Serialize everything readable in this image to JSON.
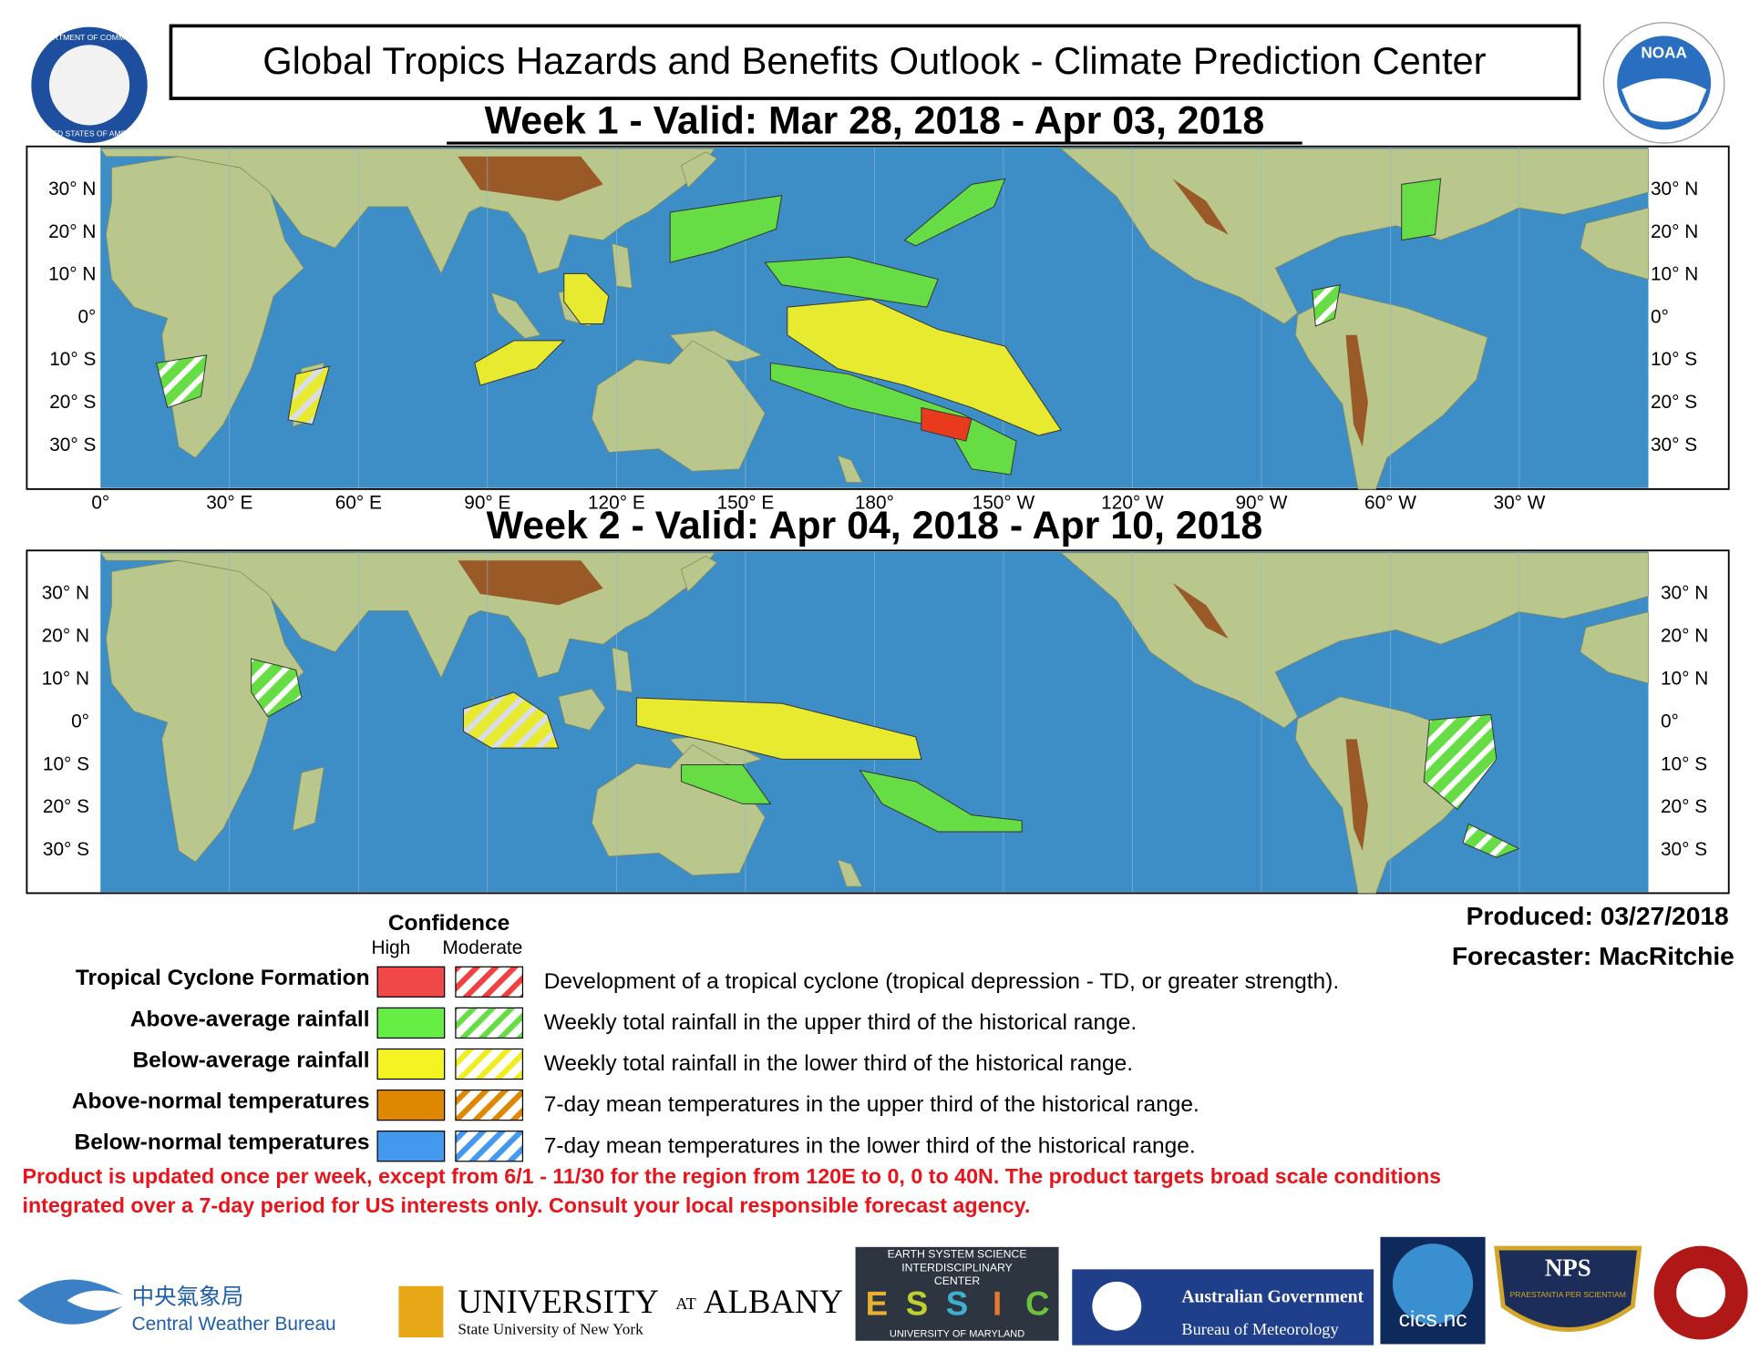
{
  "header": {
    "title": "Global Tropics Hazards and Benefits Outlook - Climate Prediction Center",
    "week1_title": "Week 1 - Valid: Mar 28, 2018 - Apr 03, 2018",
    "week2_title": "Week 2 - Valid: Apr 04, 2018 - Apr 10, 2018",
    "seal_text": "DEPARTMENT OF COMMERCE",
    "seal_text2": "UNITED STATES OF AMERICA",
    "noaa": "NOAA"
  },
  "map": {
    "lat_labels": [
      "30° N",
      "20° N",
      "10° N",
      "0°",
      "10° S",
      "20° S",
      "30° S"
    ],
    "lon_labels": [
      "0°",
      "30° E",
      "60° E",
      "90° E",
      "120° E",
      "150° E",
      "180°",
      "150° W",
      "120° W",
      "90° W",
      "60° W",
      "30° W"
    ]
  },
  "legend": {
    "heading": "Confidence",
    "high": "High",
    "moderate": "Moderate",
    "rows": [
      {
        "label": "Tropical Cyclone Formation",
        "description": "Development of a tropical cyclone (tropical depression - TD, or greater strength)."
      },
      {
        "label": "Above-average rainfall",
        "description": "Weekly total rainfall in the upper third of the historical range."
      },
      {
        "label": "Below-average rainfall",
        "description": "Weekly total rainfall in the lower third of the historical range."
      },
      {
        "label": "Above-normal temperatures",
        "description": "7-day mean temperatures in the upper third of the historical range."
      },
      {
        "label": "Below-normal temperatures",
        "description": "7-day mean temperatures in the lower third of the historical range."
      }
    ]
  },
  "produced": "Produced: 03/27/2018",
  "forecaster": "Forecaster: MacRitchie",
  "disclaimer": [
    "Product is updated once per week, except from 6/1 - 11/30 for the region from 120E to 0, 0 to 40N. The product targets broad scale conditions",
    "integrated over a 7-day period for US interests only.  Consult your local responsible forecast agency."
  ],
  "logos": {
    "cwb_chinese": "中央氣象局",
    "cwb": "Central Weather Bureau",
    "albany": "UNIVERSITY",
    "albany_at": "AT",
    "albany_name": "ALBANY",
    "suny": "State University of New York",
    "essic_1": "EARTH SYSTEM SCIENCE",
    "essic_2": "INTERDISCIPLINARY",
    "essic_3": "CENTER",
    "essic_letters": [
      "E",
      "S",
      "S",
      "I",
      "C"
    ],
    "umd": "UNIVERSITY OF MARYLAND",
    "aus_gov": "Australian Government",
    "bom": "Bureau of Meteorology",
    "cics": "cics.nc",
    "nps": "NPS",
    "nps_motto": "PRAESTANTIA PER SCIENTIAM"
  }
}
